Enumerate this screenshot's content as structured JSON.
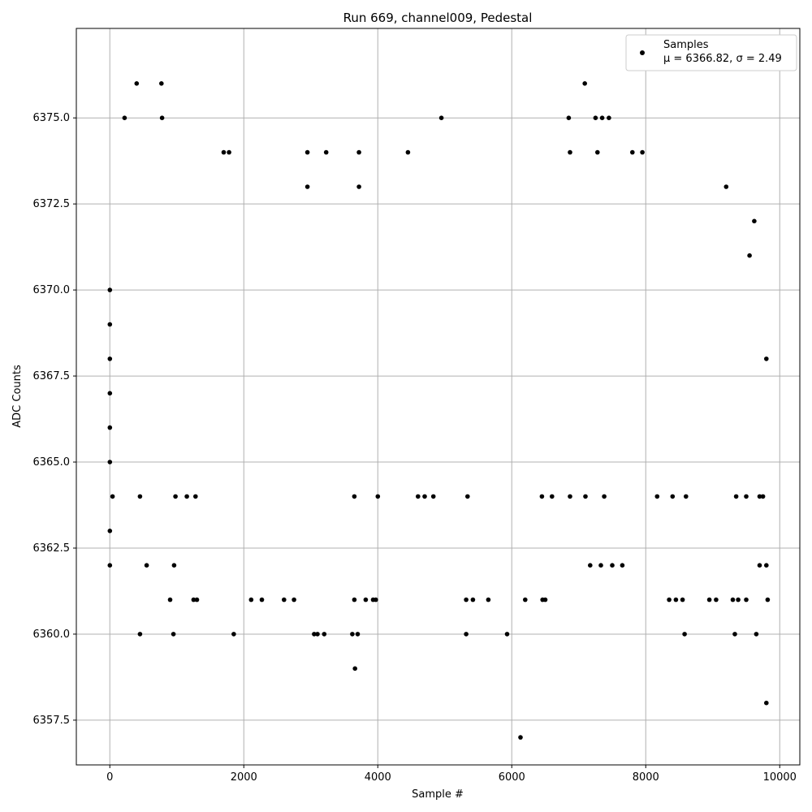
{
  "chart_data": {
    "type": "scatter",
    "title": "Run 669, channel009, Pedestal",
    "xlabel": "Sample #",
    "ylabel": "ADC Counts",
    "xlim": [
      -500,
      10300
    ],
    "ylim": [
      6356.2,
      6377.6
    ],
    "x_ticks": [
      0,
      2000,
      4000,
      6000,
      8000,
      10000
    ],
    "y_ticks": [
      6357.5,
      6360.0,
      6362.5,
      6365.0,
      6367.5,
      6370.0,
      6372.5,
      6375.0
    ],
    "grid": true,
    "legend_position": "top-right",
    "marker_color": "#000000",
    "grid_color": "#b0b0b0",
    "series": [
      {
        "name": "Samples",
        "stats_label": "μ = 6366.82, σ = 2.49",
        "points": [
          [
            0,
            6362
          ],
          [
            0,
            6363
          ],
          [
            0,
            6365
          ],
          [
            0,
            6366
          ],
          [
            0,
            6367
          ],
          [
            0,
            6368
          ],
          [
            0,
            6369
          ],
          [
            0,
            6370
          ],
          [
            40,
            6364
          ],
          [
            220,
            6375
          ],
          [
            400,
            6376
          ],
          [
            770,
            6376
          ],
          [
            780,
            6375
          ],
          [
            550,
            6362
          ],
          [
            450,
            6360
          ],
          [
            450,
            6364
          ],
          [
            950,
            6360
          ],
          [
            900,
            6361
          ],
          [
            980,
            6364
          ],
          [
            960,
            6362
          ],
          [
            1250,
            6361
          ],
          [
            1300,
            6361
          ],
          [
            1150,
            6364
          ],
          [
            1280,
            6364
          ],
          [
            1850,
            6360
          ],
          [
            1700,
            6374
          ],
          [
            1780,
            6374
          ],
          [
            2950,
            6374
          ],
          [
            3230,
            6374
          ],
          [
            3720,
            6374
          ],
          [
            4450,
            6374
          ],
          [
            2950,
            6373
          ],
          [
            3720,
            6373
          ],
          [
            2110,
            6361
          ],
          [
            2270,
            6361
          ],
          [
            2600,
            6361
          ],
          [
            2750,
            6361
          ],
          [
            3050,
            6360
          ],
          [
            3100,
            6360
          ],
          [
            3200,
            6360
          ],
          [
            3620,
            6360
          ],
          [
            3700,
            6360
          ],
          [
            3660,
            6359
          ],
          [
            3650,
            6361
          ],
          [
            3820,
            6361
          ],
          [
            3930,
            6361
          ],
          [
            3970,
            6361
          ],
          [
            4000,
            6364
          ],
          [
            3650,
            6364
          ],
          [
            4600,
            6364
          ],
          [
            4700,
            6364
          ],
          [
            4830,
            6364
          ],
          [
            4950,
            6375
          ],
          [
            5340,
            6364
          ],
          [
            5320,
            6360
          ],
          [
            5320,
            6361
          ],
          [
            5420,
            6361
          ],
          [
            5650,
            6361
          ],
          [
            5930,
            6360
          ],
          [
            6130,
            6357
          ],
          [
            6200,
            6361
          ],
          [
            6460,
            6361
          ],
          [
            6500,
            6361
          ],
          [
            6450,
            6364
          ],
          [
            6600,
            6364
          ],
          [
            6870,
            6364
          ],
          [
            7100,
            6364
          ],
          [
            7380,
            6364
          ],
          [
            6850,
            6375
          ],
          [
            7090,
            6376
          ],
          [
            7250,
            6375
          ],
          [
            7350,
            6375
          ],
          [
            7450,
            6375
          ],
          [
            6870,
            6374
          ],
          [
            7280,
            6374
          ],
          [
            7800,
            6374
          ],
          [
            7950,
            6374
          ],
          [
            7170,
            6362
          ],
          [
            7330,
            6362
          ],
          [
            7500,
            6362
          ],
          [
            7650,
            6362
          ],
          [
            8170,
            6364
          ],
          [
            8400,
            6364
          ],
          [
            8600,
            6364
          ],
          [
            8580,
            6360
          ],
          [
            8350,
            6361
          ],
          [
            8450,
            6361
          ],
          [
            8550,
            6361
          ],
          [
            8950,
            6361
          ],
          [
            9050,
            6361
          ],
          [
            9200,
            6373
          ],
          [
            9300,
            6361
          ],
          [
            9380,
            6361
          ],
          [
            9500,
            6361
          ],
          [
            9330,
            6360
          ],
          [
            9650,
            6360
          ],
          [
            9800,
            6358
          ],
          [
            9820,
            6361
          ],
          [
            9550,
            6371
          ],
          [
            9620,
            6372
          ],
          [
            9700,
            6362
          ],
          [
            9800,
            6362
          ],
          [
            9800,
            6368
          ],
          [
            9700,
            6364
          ],
          [
            9750,
            6364
          ],
          [
            9500,
            6364
          ],
          [
            9350,
            6364
          ]
        ]
      }
    ]
  }
}
